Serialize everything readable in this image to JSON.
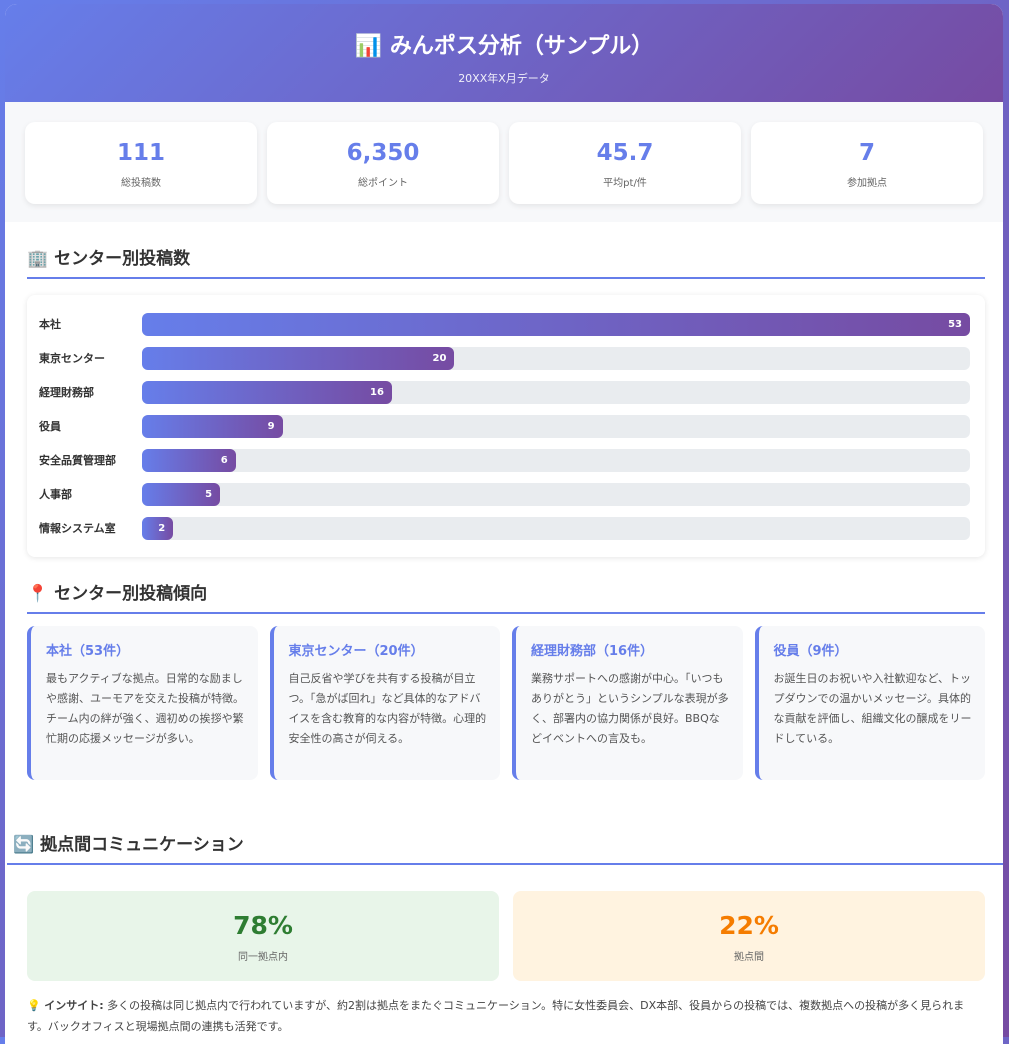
{
  "header": {
    "icon": "bar-chart-icon",
    "title": "みんポス分析（サンプル）",
    "subtitle": "20XX年X月データ"
  },
  "stats": [
    {
      "value": "111",
      "label": "総投稿数"
    },
    {
      "value": "6,350",
      "label": "総ポイント"
    },
    {
      "value": "45.7",
      "label": "平均pt/件"
    },
    {
      "value": "7",
      "label": "参加拠点"
    }
  ],
  "posts_section": {
    "icon": "office-building-icon",
    "title": "センター別投稿数"
  },
  "chart_data": {
    "type": "bar",
    "orientation": "horizontal",
    "categories": [
      "本社",
      "東京センター",
      "経理財務部",
      "役員",
      "安全品質管理部",
      "人事部",
      "情報システム室"
    ],
    "values": [
      53,
      20,
      16,
      9,
      6,
      5,
      2
    ],
    "xlim": [
      0,
      53
    ]
  },
  "trend_section": {
    "icon": "pin-icon",
    "title": "センター別投稿傾向"
  },
  "trend_cards": [
    {
      "title": "本社（53件）",
      "text": "最もアクティブな拠点。日常的な励ましや感謝、ユーモアを交えた投稿が特徴。チーム内の絆が強く、週初めの挨拶や繁忙期の応援メッセージが多い。"
    },
    {
      "title": "東京センター（20件）",
      "text": "自己反省や学びを共有する投稿が目立つ。「急がば回れ」など具体的なアドバイスを含む教育的な内容が特徴。心理的安全性の高さが伺える。"
    },
    {
      "title": "経理財務部（16件）",
      "text": "業務サポートへの感謝が中心。「いつもありがとう」というシンプルな表現が多く、部署内の協力関係が良好。BBQなどイベントへの言及も。"
    },
    {
      "title": "役員（9件）",
      "text": "お誕生日のお祝いや入社歓迎など、トップダウンでの温かいメッセージ。具体的な貢献を評価し、組織文化の醸成をリードしている。"
    }
  ],
  "comm_section": {
    "icon": "refresh-icon",
    "title": "拠点間コミュニケーション"
  },
  "comm": [
    {
      "value": "78%",
      "label": "同一拠点内",
      "color": "#2e7d32",
      "bg": "#e8f5e9"
    },
    {
      "value": "22%",
      "label": "拠点間",
      "color": "#f57c00",
      "bg": "#fff3e0"
    }
  ],
  "insight": {
    "icon": "lightbulb-icon",
    "label": "インサイト:",
    "text": " 多くの投稿は同じ拠点内で行われていますが、約2割は拠点をまたぐコミュニケーション。特に女性委員会、DX本部、役員からの投稿では、複数拠点への投稿が多く見られます。バックオフィスと現場拠点間の連携も活発です。"
  }
}
